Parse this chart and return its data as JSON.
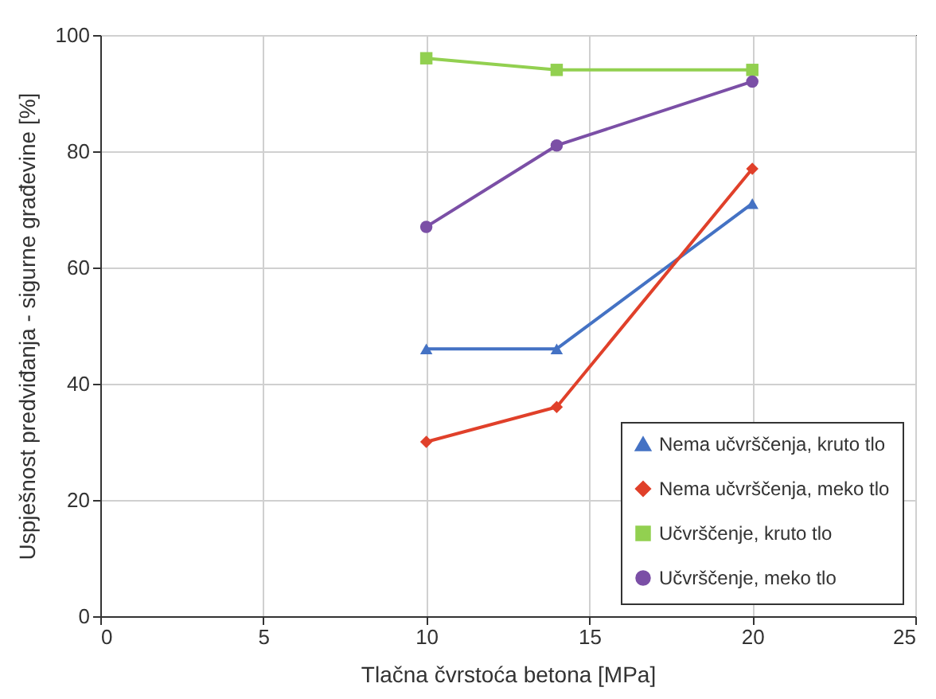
{
  "chart_data": {
    "type": "line",
    "xlabel": "Tlačna čvrstoća betona [MPa]",
    "ylabel": "Uspješnost predviđanja - sigurne građevine [%]",
    "xlim": [
      0,
      25
    ],
    "xticks": [
      0,
      5,
      10,
      15,
      20,
      25
    ],
    "ylim": [
      0,
      100
    ],
    "yticks": [
      0,
      20,
      40,
      60,
      80,
      100
    ],
    "grid": true,
    "legend": "bottom right",
    "line_style": "solid",
    "x": [
      10,
      14,
      20
    ],
    "series": [
      {
        "name": "Nema učvrščenja, kruto tlo",
        "color": "#4472c4",
        "marker": "triangle",
        "values": [
          46,
          46,
          71
        ]
      },
      {
        "name": "Nema učvrščenja, meko tlo",
        "color": "#e0402a",
        "marker": "diamond",
        "values": [
          30,
          36,
          77
        ]
      },
      {
        "name": "Učvrščenje, kruto tlo",
        "color": "#92d050",
        "marker": "square",
        "values": [
          96,
          94,
          94
        ]
      },
      {
        "name": "Učvrščenje, meko tlo",
        "color": "#7b4fa6",
        "marker": "circle",
        "values": [
          67,
          81,
          92
        ]
      }
    ]
  }
}
